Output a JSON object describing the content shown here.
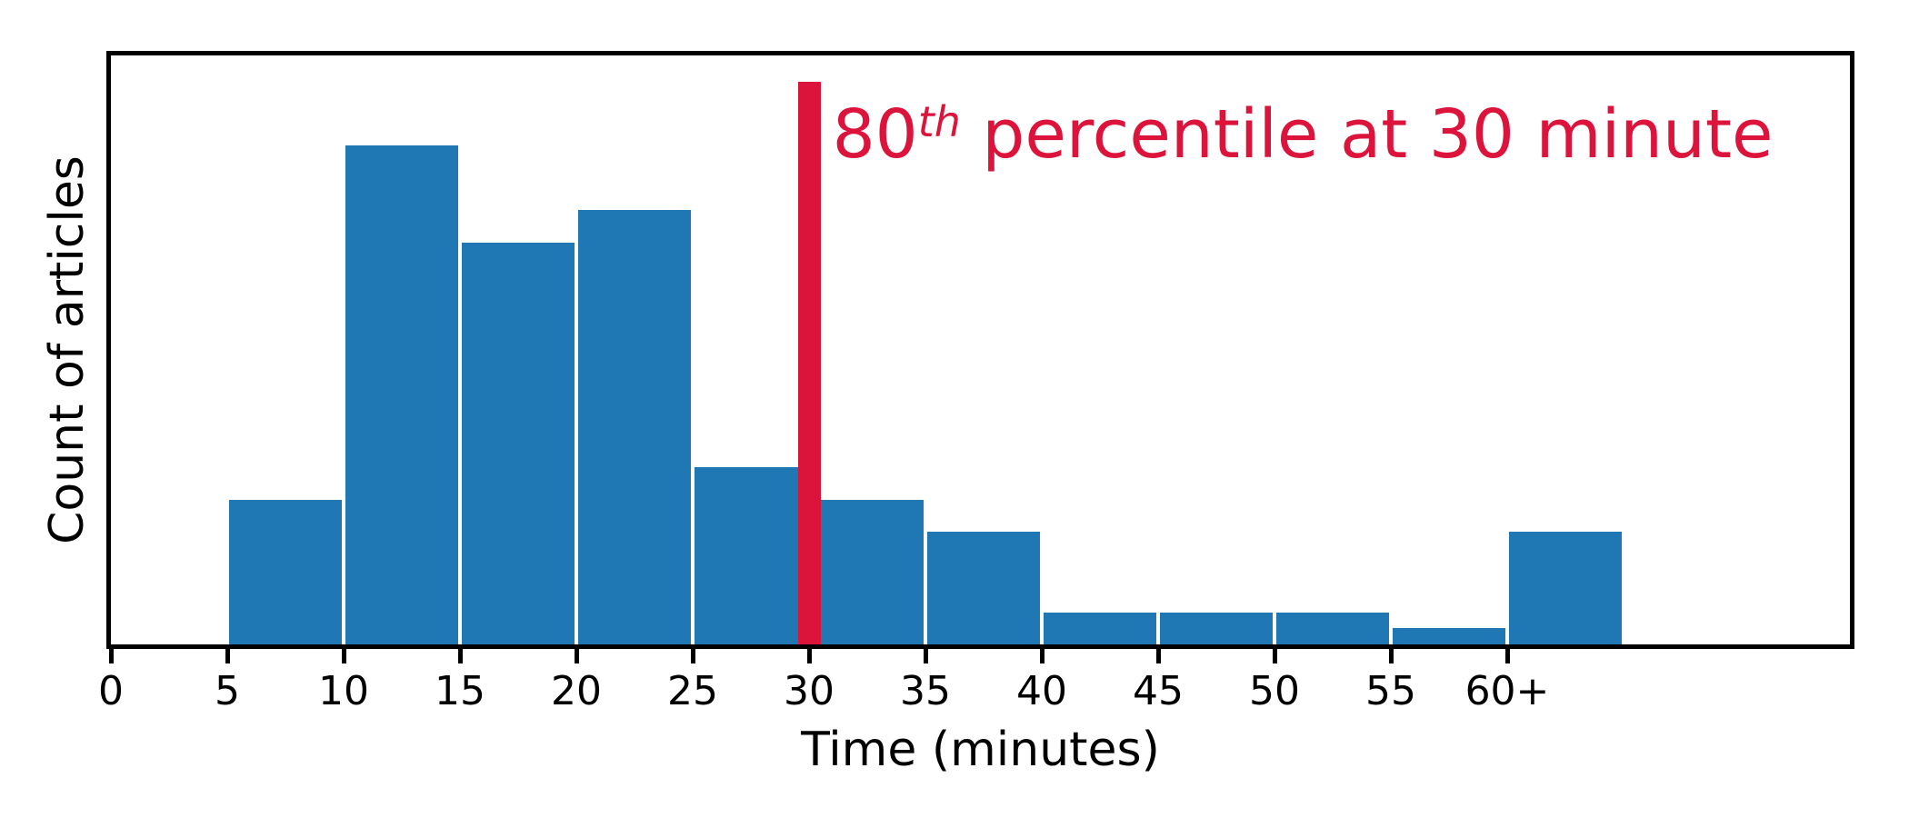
{
  "figure": {
    "background": "#ffffff",
    "axis_color": "#000000"
  },
  "chart_data": {
    "type": "bar",
    "subtype": "histogram",
    "title": "",
    "xlabel": "Time (minutes)",
    "ylabel": "Count of articles",
    "xlim": [
      0,
      75
    ],
    "ylim": [
      0,
      37
    ],
    "grid": false,
    "legend": null,
    "bar_color": "#1f77b4",
    "bin_width": 5,
    "bins": [
      {
        "from": 5,
        "to": 10,
        "count": 9
      },
      {
        "from": 10,
        "to": 15,
        "count": 31
      },
      {
        "from": 15,
        "to": 20,
        "count": 25
      },
      {
        "from": 20,
        "to": 25,
        "count": 27
      },
      {
        "from": 25,
        "to": 30,
        "count": 11
      },
      {
        "from": 30,
        "to": 35,
        "count": 9
      },
      {
        "from": 35,
        "to": 40,
        "count": 7
      },
      {
        "from": 40,
        "to": 45,
        "count": 2
      },
      {
        "from": 45,
        "to": 50,
        "count": 2
      },
      {
        "from": 50,
        "to": 55,
        "count": 2
      },
      {
        "from": 55,
        "to": 60,
        "count": 1
      },
      {
        "from": 60,
        "to": 65,
        "count": 7
      }
    ],
    "x_ticks": [
      {
        "value": 0,
        "label": "0"
      },
      {
        "value": 5,
        "label": "5"
      },
      {
        "value": 10,
        "label": "10"
      },
      {
        "value": 15,
        "label": "15"
      },
      {
        "value": 20,
        "label": "20"
      },
      {
        "value": 25,
        "label": "25"
      },
      {
        "value": 30,
        "label": "30"
      },
      {
        "value": 35,
        "label": "35"
      },
      {
        "value": 40,
        "label": "40"
      },
      {
        "value": 45,
        "label": "45"
      },
      {
        "value": 50,
        "label": "50"
      },
      {
        "value": 55,
        "label": "55"
      },
      {
        "value": 60,
        "label": "60+"
      }
    ],
    "vline": {
      "x": 30,
      "color": "#dc143c",
      "y_extent": [
        0,
        35
      ]
    },
    "annotation": {
      "number": "80",
      "superscript": "th",
      "rest": " percentile at 30 minute",
      "color": "#dc143c",
      "at_x": 31
    }
  }
}
